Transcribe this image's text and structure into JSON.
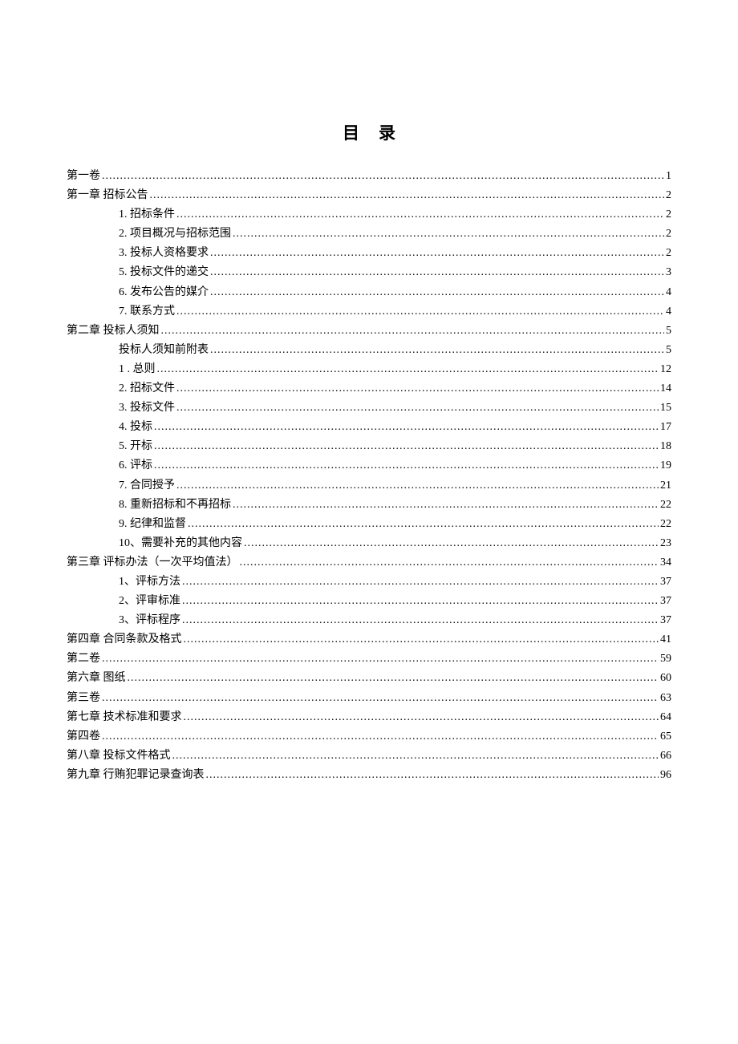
{
  "title": "目录",
  "text_color": "#000000",
  "background_color": "#ffffff",
  "title_fontsize": 21,
  "entry_fontsize": 14,
  "line_height": 24.1,
  "entries": [
    {
      "level": 0,
      "label": "第一卷",
      "page": "1"
    },
    {
      "level": 0,
      "label": "第一章 招标公告",
      "page": "2"
    },
    {
      "level": 1,
      "label": "1. 招标条件",
      "page": "2"
    },
    {
      "level": 1,
      "label": "2. 项目概况与招标范围",
      "page": "2"
    },
    {
      "level": 1,
      "label": "3. 投标人资格要求",
      "page": "2"
    },
    {
      "level": 1,
      "label": "5. 投标文件的递交",
      "page": "3"
    },
    {
      "level": 1,
      "label": "6. 发布公告的媒介",
      "page": "4"
    },
    {
      "level": 1,
      "label": "7. 联系方式",
      "page": "4"
    },
    {
      "level": 0,
      "label": "第二章 投标人须知",
      "page": "5"
    },
    {
      "level": 1,
      "label": "投标人须知前附表",
      "page": "5"
    },
    {
      "level": 1,
      "label": "1 . 总则",
      "page": "12"
    },
    {
      "level": 1,
      "label": "2. 招标文件",
      "page": "14"
    },
    {
      "level": 1,
      "label": "3. 投标文件",
      "page": "15"
    },
    {
      "level": 1,
      "label": "4. 投标",
      "page": "17"
    },
    {
      "level": 1,
      "label": "5. 开标",
      "page": "18"
    },
    {
      "level": 1,
      "label": "6. 评标",
      "page": "19"
    },
    {
      "level": 1,
      "label": "7. 合同授予",
      "page": "21"
    },
    {
      "level": 1,
      "label": "8. 重新招标和不再招标",
      "page": "22"
    },
    {
      "level": 1,
      "label": "9. 纪律和监督",
      "page": "22"
    },
    {
      "level": 1,
      "label": "10、需要补充的其他内容",
      "page": "23"
    },
    {
      "level": 0,
      "label": "第三章 评标办法（一次平均值法）",
      "page": "34"
    },
    {
      "level": 1,
      "label": "1、评标方法",
      "page": "37"
    },
    {
      "level": 1,
      "label": "2、评审标准",
      "page": "37"
    },
    {
      "level": 1,
      "label": "3、评标程序",
      "page": "37"
    },
    {
      "level": 0,
      "label": "第四章 合同条款及格式",
      "page": "41"
    },
    {
      "level": 0,
      "label": "第二卷",
      "page": "59"
    },
    {
      "level": 0,
      "label": "第六章 图纸",
      "page": "60"
    },
    {
      "level": 0,
      "label": "第三卷",
      "page": "63"
    },
    {
      "level": 0,
      "label": "第七章 技术标准和要求",
      "page": "64"
    },
    {
      "level": 0,
      "label": "第四卷",
      "page": "65"
    },
    {
      "level": 0,
      "label": "第八章 投标文件格式",
      "page": "66"
    },
    {
      "level": 0,
      "label": "第九章 行贿犯罪记录查询表",
      "page": "96"
    }
  ]
}
